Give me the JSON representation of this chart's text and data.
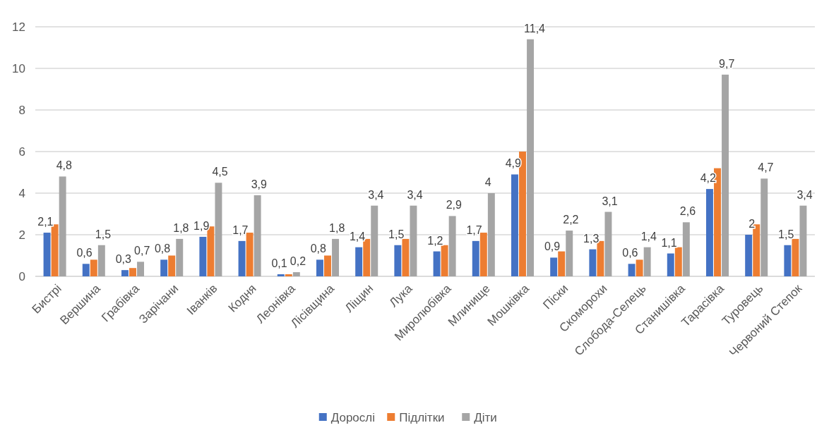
{
  "chart_data": {
    "type": "bar",
    "categories": [
      "Бистрі",
      "Вершина",
      "Грабівка",
      "Зарічани",
      "Іванків",
      "Кодня",
      "Леонівка",
      "Лісівщина",
      "Ліщин",
      "Лука",
      "Миролюбівка",
      "Млинище",
      "Мошківка",
      "Піски",
      "Скоморохи",
      "Слобода-Селець",
      "Станишівка",
      "Тарасівка",
      "Туровець",
      "Червоний Степок"
    ],
    "series": [
      {
        "name": "Дорослі",
        "color": "#4472c4",
        "values": [
          2.1,
          0.6,
          0.3,
          0.8,
          1.9,
          1.7,
          0.1,
          0.8,
          1.4,
          1.5,
          1.2,
          1.7,
          4.9,
          0.9,
          1.3,
          0.6,
          1.1,
          4.2,
          2,
          1.5
        ],
        "value_labels": [
          "2,1",
          "0,6",
          "0,3",
          "0,8",
          "1,9",
          "1,7",
          "0,1",
          "0,8",
          "1,4",
          "1,5",
          "1,2",
          "1,7",
          "4,9",
          "0,9",
          "1,3",
          "0,6",
          "1,1",
          "4,2",
          "2",
          "1,5"
        ]
      },
      {
        "name": "Підлітки",
        "color": "#ed7d31",
        "values": [
          2.5,
          0.8,
          0.4,
          1.0,
          2.4,
          2.1,
          0.1,
          1.0,
          1.8,
          1.8,
          1.5,
          2.1,
          6.0,
          1.2,
          1.7,
          0.8,
          1.4,
          5.2,
          2.5,
          1.8
        ]
      },
      {
        "name": "Діти",
        "color": "#a5a5a5",
        "values": [
          4.8,
          1.5,
          0.7,
          1.8,
          4.5,
          3.9,
          0.2,
          1.8,
          3.4,
          3.4,
          2.9,
          4,
          11.4,
          2.2,
          3.1,
          1.4,
          2.6,
          9.7,
          4.7,
          3.4
        ],
        "value_labels": [
          "4,8",
          "1,5",
          "0,7",
          "1,8",
          "4,5",
          "3,9",
          "0,2",
          "1,8",
          "3,4",
          "3,4",
          "2,9",
          "4",
          "11,4",
          "2,2",
          "3,1",
          "1,4",
          "2,6",
          "9,7",
          "4,7",
          "3,4"
        ]
      }
    ],
    "ylim": [
      0,
      12
    ],
    "yticks": [
      0,
      2,
      4,
      6,
      8,
      10,
      12
    ],
    "grid": "y",
    "legend": "bottom"
  }
}
